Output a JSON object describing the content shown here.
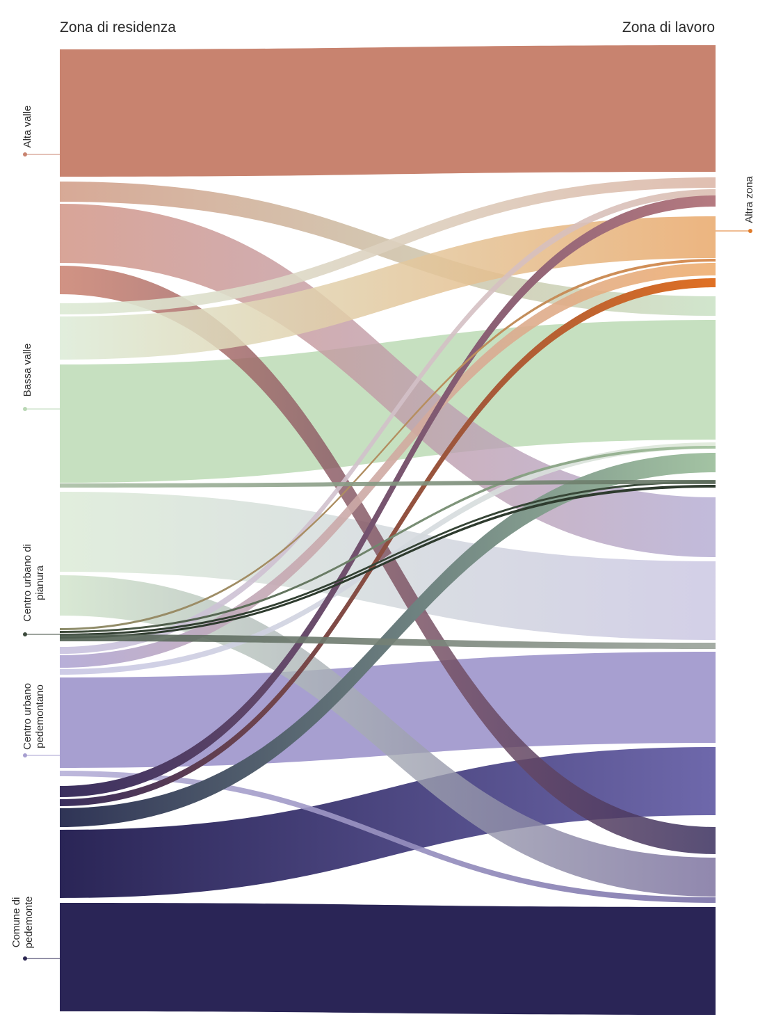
{
  "headers": {
    "left": "Zona di residenza",
    "right": "Zona di lavoro"
  },
  "left_nodes": [
    {
      "id": "alta_valle",
      "lines": [
        "Alta valle"
      ],
      "dot_color": "#c8836f"
    },
    {
      "id": "bassa_valle",
      "lines": [
        "Bassa valle"
      ],
      "dot_color": "#b9d7b4"
    },
    {
      "id": "centro_pianura",
      "lines": [
        "Centro urbano di",
        "pianura"
      ],
      "dot_color": "#3c4a3c"
    },
    {
      "id": "centro_pedemontano",
      "lines": [
        "Centro urbano",
        "pedemontano"
      ],
      "dot_color": "#a79fd0"
    },
    {
      "id": "comune_pedemonte",
      "lines": [
        "Comune di",
        "pedemonte"
      ],
      "dot_color": "#2a2550"
    }
  ],
  "right_nodes": [
    {
      "id": "altra_zona",
      "lines": [
        "Altra zona"
      ],
      "dot_color": "#e07b2a"
    }
  ],
  "colors": {
    "alta_valle": "#c8836f",
    "bassa_valle": "#c6e0c0",
    "bassa_valle_light": "#dcebd7",
    "centro_pianura": "#2f4430",
    "centro_pedemontano": "#a79fd0",
    "centro_pedemontano_light": "#cbc7e3",
    "comune_pedemonte": "#2a2556",
    "altra_zona": "#e9a86a",
    "altra_zona_dark": "#e07b2a"
  }
}
